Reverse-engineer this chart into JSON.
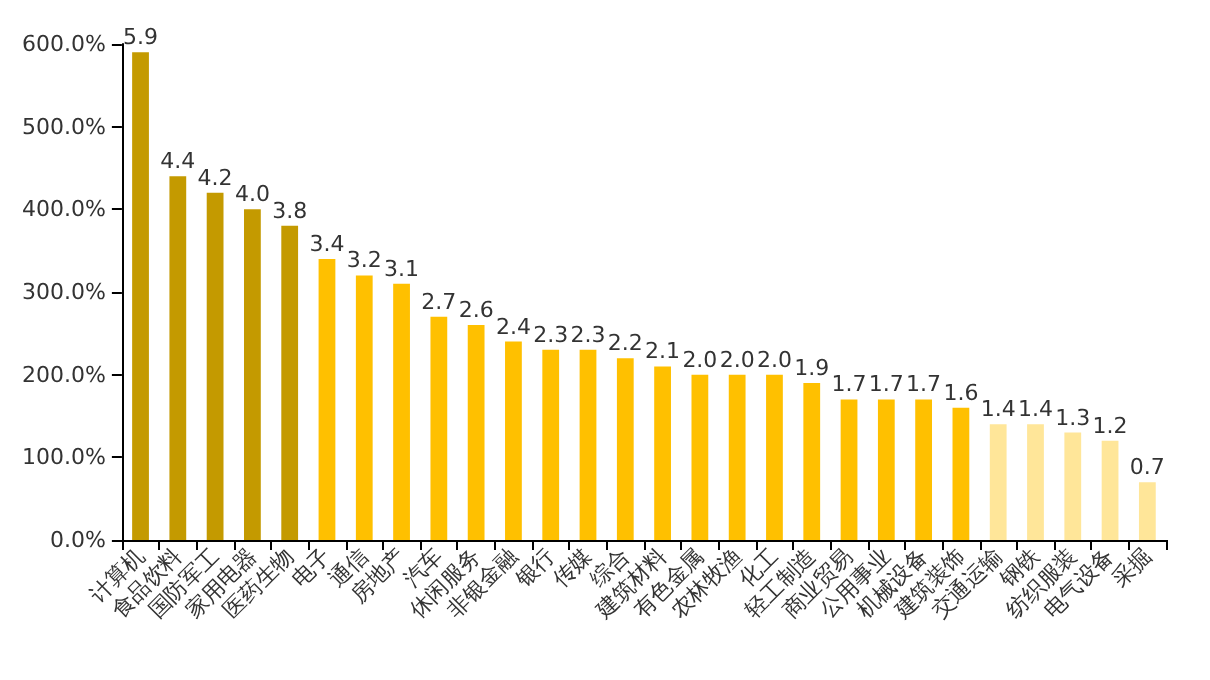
{
  "chart_data": {
    "type": "bar",
    "categories": [
      "计算机",
      "食品饮料",
      "国防军工",
      "家用电器",
      "医药生物",
      "电子",
      "通信",
      "房地产",
      "汽车",
      "休闲服务",
      "非银金融",
      "银行",
      "传媒",
      "综合",
      "建筑材料",
      "有色金属",
      "农林牧渔",
      "化工",
      "轻工制造",
      "商业贸易",
      "公用事业",
      "机械设备",
      "建筑装饰",
      "交通运输",
      "钢铁",
      "纺织服装",
      "电气设备",
      "采掘"
    ],
    "values": [
      5.9,
      4.4,
      4.2,
      4.0,
      3.8,
      3.4,
      3.2,
      3.1,
      2.7,
      2.6,
      2.4,
      2.3,
      2.3,
      2.2,
      2.1,
      2.0,
      2.0,
      2.0,
      1.9,
      1.7,
      1.7,
      1.7,
      1.6,
      1.4,
      1.4,
      1.3,
      1.2,
      0.7
    ],
    "value_labels": [
      "5.9",
      "4.4",
      "4.2",
      "4.0",
      "3.8",
      "3.4",
      "3.2",
      "3.1",
      "2.7",
      "2.6",
      "2.4",
      "2.3",
      "2.3",
      "2.2",
      "2.1",
      "2.0",
      "2.0",
      "2.0",
      "1.9",
      "1.7",
      "1.7",
      "1.7",
      "1.6",
      "1.4",
      "1.4",
      "1.3",
      "1.2",
      "0.7"
    ],
    "colors": [
      "#c49a00",
      "#c49a00",
      "#c49a00",
      "#c49a00",
      "#c49a00",
      "#ffc000",
      "#ffc000",
      "#ffc000",
      "#ffc000",
      "#ffc000",
      "#ffc000",
      "#ffc000",
      "#ffc000",
      "#ffc000",
      "#ffc000",
      "#ffc000",
      "#ffc000",
      "#ffc000",
      "#ffc000",
      "#ffc000",
      "#ffc000",
      "#ffc000",
      "#ffc000",
      "#ffe699",
      "#ffe699",
      "#ffe699",
      "#ffe699",
      "#ffe699"
    ],
    "ylim": [
      0,
      6
    ],
    "yticks": [
      {
        "value": 0,
        "label": "0.0%"
      },
      {
        "value": 1,
        "label": "100.0%"
      },
      {
        "value": 2,
        "label": "200.0%"
      },
      {
        "value": 3,
        "label": "300.0%"
      },
      {
        "value": 4,
        "label": "400.0%"
      },
      {
        "value": 5,
        "label": "500.0%"
      },
      {
        "value": 6,
        "label": "600.0%"
      }
    ],
    "grid": false
  }
}
